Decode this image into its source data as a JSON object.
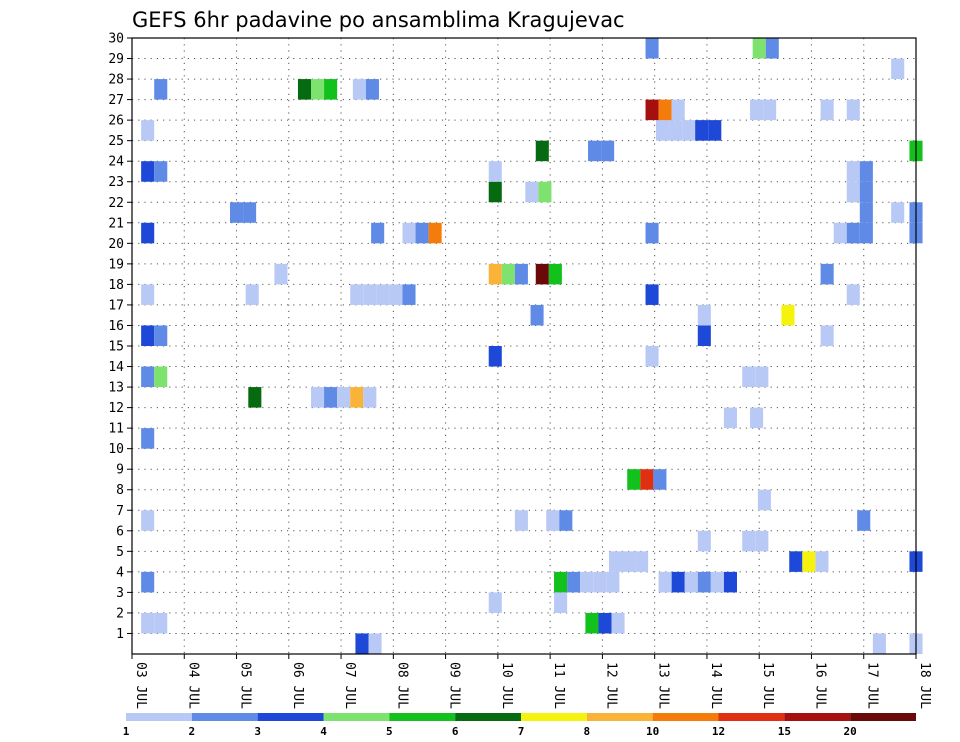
{
  "chart_data": {
    "type": "heatmap",
    "title": "GEFS 6hr padavine po ansamblima Kragujevac",
    "x_labels": [
      "03 JUL",
      "04 JUL",
      "05 JUL",
      "06 JUL",
      "07 JUL",
      "08 JUL",
      "09 JUL",
      "10 JUL",
      "11 JUL",
      "12 JUL",
      "13 JUL",
      "14 JUL",
      "15 JUL",
      "16 JUL",
      "17 JUL",
      "18 JUL"
    ],
    "y_labels": [
      "1",
      "2",
      "3",
      "4",
      "5",
      "6",
      "7",
      "8",
      "9",
      "10",
      "11",
      "12",
      "13",
      "14",
      "15",
      "16",
      "17",
      "18",
      "19",
      "20",
      "21",
      "22",
      "23",
      "24",
      "25",
      "26",
      "27",
      "28",
      "29",
      "30"
    ],
    "ylim": [
      0,
      30
    ],
    "grid": true,
    "colorbar": {
      "labels": [
        "1",
        "2",
        "3",
        "4",
        "5",
        "6",
        "7",
        "8",
        "10",
        "12",
        "15",
        "20"
      ],
      "colors": [
        "#b9c9f6",
        "#5f8be6",
        "#1d48d8",
        "#7de36e",
        "#12c11b",
        "#066b10",
        "#f5f20d",
        "#f9b338",
        "#f47c0a",
        "#df3012",
        "#a60f0f",
        "#6b0808"
      ]
    },
    "cells": [
      [
        0.3,
        1,
        0
      ],
      [
        0.55,
        1,
        0
      ],
      [
        8.8,
        1,
        4
      ],
      [
        9.05,
        1,
        2
      ],
      [
        9.3,
        1,
        0
      ],
      [
        4.4,
        0,
        2
      ],
      [
        4.65,
        0,
        0
      ],
      [
        14.3,
        0,
        0
      ],
      [
        15.0,
        0,
        0
      ],
      [
        6.95,
        2,
        0
      ],
      [
        8.2,
        2,
        0
      ],
      [
        0.3,
        3,
        1
      ],
      [
        8.2,
        3,
        4
      ],
      [
        8.45,
        3,
        1
      ],
      [
        8.7,
        3,
        0
      ],
      [
        8.95,
        3,
        0
      ],
      [
        9.2,
        3,
        0
      ],
      [
        10.2,
        3,
        0
      ],
      [
        10.45,
        3,
        2
      ],
      [
        10.7,
        3,
        0
      ],
      [
        10.95,
        3,
        1
      ],
      [
        11.2,
        3,
        0
      ],
      [
        11.45,
        3,
        2
      ],
      [
        9.25,
        4,
        0
      ],
      [
        9.5,
        4,
        0
      ],
      [
        9.75,
        4,
        0
      ],
      [
        12.7,
        4,
        2
      ],
      [
        12.95,
        4,
        6
      ],
      [
        13.2,
        4,
        0
      ],
      [
        15.0,
        4,
        2
      ],
      [
        10.95,
        5,
        0
      ],
      [
        11.8,
        5,
        0
      ],
      [
        12.05,
        5,
        0
      ],
      [
        0.3,
        6,
        0
      ],
      [
        7.45,
        6,
        0
      ],
      [
        8.05,
        6,
        0
      ],
      [
        8.3,
        6,
        1
      ],
      [
        14.0,
        6,
        1
      ],
      [
        12.1,
        7,
        0
      ],
      [
        9.6,
        8,
        4
      ],
      [
        9.85,
        8,
        9
      ],
      [
        10.1,
        8,
        1
      ],
      [
        0.3,
        10,
        1
      ],
      [
        11.45,
        11,
        0
      ],
      [
        11.95,
        11,
        0
      ],
      [
        2.35,
        12,
        5
      ],
      [
        3.55,
        12,
        0
      ],
      [
        3.8,
        12,
        1
      ],
      [
        4.05,
        12,
        0
      ],
      [
        4.3,
        12,
        7
      ],
      [
        4.55,
        12,
        0
      ],
      [
        0.3,
        13,
        1
      ],
      [
        0.55,
        13,
        3
      ],
      [
        11.8,
        13,
        0
      ],
      [
        12.05,
        13,
        0
      ],
      [
        6.95,
        14,
        2
      ],
      [
        9.95,
        14,
        0
      ],
      [
        0.3,
        15,
        2
      ],
      [
        0.55,
        15,
        1
      ],
      [
        10.95,
        15,
        2
      ],
      [
        13.3,
        15,
        0
      ],
      [
        12.55,
        16,
        6
      ],
      [
        7.75,
        16,
        1
      ],
      [
        10.95,
        16,
        0
      ],
      [
        0.3,
        17,
        0
      ],
      [
        2.3,
        17,
        0
      ],
      [
        4.3,
        17,
        0
      ],
      [
        4.55,
        17,
        0
      ],
      [
        4.8,
        17,
        0
      ],
      [
        5.05,
        17,
        0
      ],
      [
        5.3,
        17,
        1
      ],
      [
        9.95,
        17,
        2
      ],
      [
        13.8,
        17,
        0
      ],
      [
        2.85,
        18,
        0
      ],
      [
        6.95,
        18,
        7
      ],
      [
        7.2,
        18,
        3
      ],
      [
        7.45,
        18,
        1
      ],
      [
        7.85,
        18,
        11
      ],
      [
        8.1,
        18,
        4
      ],
      [
        13.3,
        18,
        1
      ],
      [
        0.3,
        20,
        2
      ],
      [
        4.7,
        20,
        1
      ],
      [
        5.3,
        20,
        0
      ],
      [
        5.55,
        20,
        1
      ],
      [
        5.8,
        20,
        8
      ],
      [
        9.95,
        20,
        1
      ],
      [
        13.55,
        20,
        0
      ],
      [
        13.8,
        20,
        1
      ],
      [
        14.05,
        20,
        1
      ],
      [
        15.0,
        20,
        1
      ],
      [
        2.0,
        21,
        1
      ],
      [
        2.25,
        21,
        1
      ],
      [
        14.05,
        21,
        1
      ],
      [
        14.65,
        21,
        0
      ],
      [
        15.0,
        21,
        1
      ],
      [
        6.95,
        22,
        5
      ],
      [
        7.65,
        22,
        0
      ],
      [
        7.9,
        22,
        3
      ],
      [
        13.8,
        22,
        0
      ],
      [
        14.05,
        22,
        1
      ],
      [
        0.3,
        23,
        2
      ],
      [
        0.55,
        23,
        1
      ],
      [
        6.95,
        23,
        0
      ],
      [
        13.8,
        23,
        0
      ],
      [
        14.05,
        23,
        1
      ],
      [
        7.85,
        24,
        5
      ],
      [
        8.85,
        24,
        1
      ],
      [
        9.1,
        24,
        1
      ],
      [
        15.0,
        24,
        4
      ],
      [
        0.3,
        25,
        0
      ],
      [
        10.15,
        25,
        0
      ],
      [
        10.4,
        25,
        0
      ],
      [
        10.65,
        25,
        0
      ],
      [
        10.9,
        25,
        2
      ],
      [
        11.15,
        25,
        2
      ],
      [
        9.95,
        26,
        10
      ],
      [
        10.2,
        26,
        8
      ],
      [
        10.45,
        26,
        0
      ],
      [
        11.95,
        26,
        0
      ],
      [
        12.2,
        26,
        0
      ],
      [
        13.3,
        26,
        0
      ],
      [
        13.8,
        26,
        0
      ],
      [
        0.55,
        27,
        1
      ],
      [
        3.3,
        27,
        5
      ],
      [
        3.55,
        27,
        3
      ],
      [
        3.8,
        27,
        4
      ],
      [
        4.35,
        27,
        0
      ],
      [
        4.6,
        27,
        1
      ],
      [
        14.65,
        28,
        0
      ],
      [
        9.95,
        29,
        1
      ],
      [
        12.0,
        29,
        3
      ],
      [
        12.25,
        29,
        1
      ]
    ]
  }
}
